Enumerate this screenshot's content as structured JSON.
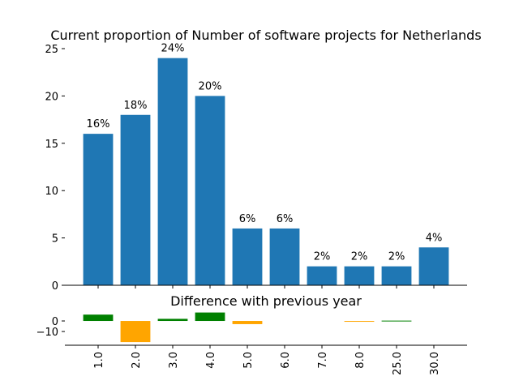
{
  "chart_data": [
    {
      "type": "bar",
      "title": "Current proportion of Number of software projects for Netherlands",
      "categories": [
        "1.0",
        "2.0",
        "3.0",
        "4.0",
        "5.0",
        "6.0",
        "7.0",
        "8.0",
        "25.0",
        "30.0"
      ],
      "values": [
        16,
        18,
        24,
        20,
        6,
        6,
        2,
        2,
        2,
        4
      ],
      "data_labels": [
        "16%",
        "18%",
        "24%",
        "20%",
        "6%",
        "6%",
        "2%",
        "2%",
        "2%",
        "4%"
      ],
      "ylim": [
        0,
        25
      ],
      "yticks": [
        "0",
        "5",
        "10",
        "15",
        "20",
        "25"
      ],
      "ytick_values": [
        0,
        5,
        10,
        15,
        20,
        25
      ],
      "grid": false,
      "bar_color": "#1f77b4"
    },
    {
      "type": "bar",
      "title": "Difference with previous year",
      "categories": [
        "1.0",
        "2.0",
        "3.0",
        "4.0",
        "5.0",
        "6.0",
        "7.0",
        "8.0",
        "25.0",
        "30.0"
      ],
      "values": [
        6,
        -20,
        2,
        8,
        -3,
        0,
        0,
        -0.3,
        0.3,
        0
      ],
      "ylim": [
        -23,
        10
      ],
      "yticks": [
        "0",
        "−10"
      ],
      "ytick_values": [
        0,
        -10
      ],
      "grid": false,
      "positive_color": "#008000",
      "negative_color": "#ffa500"
    }
  ]
}
